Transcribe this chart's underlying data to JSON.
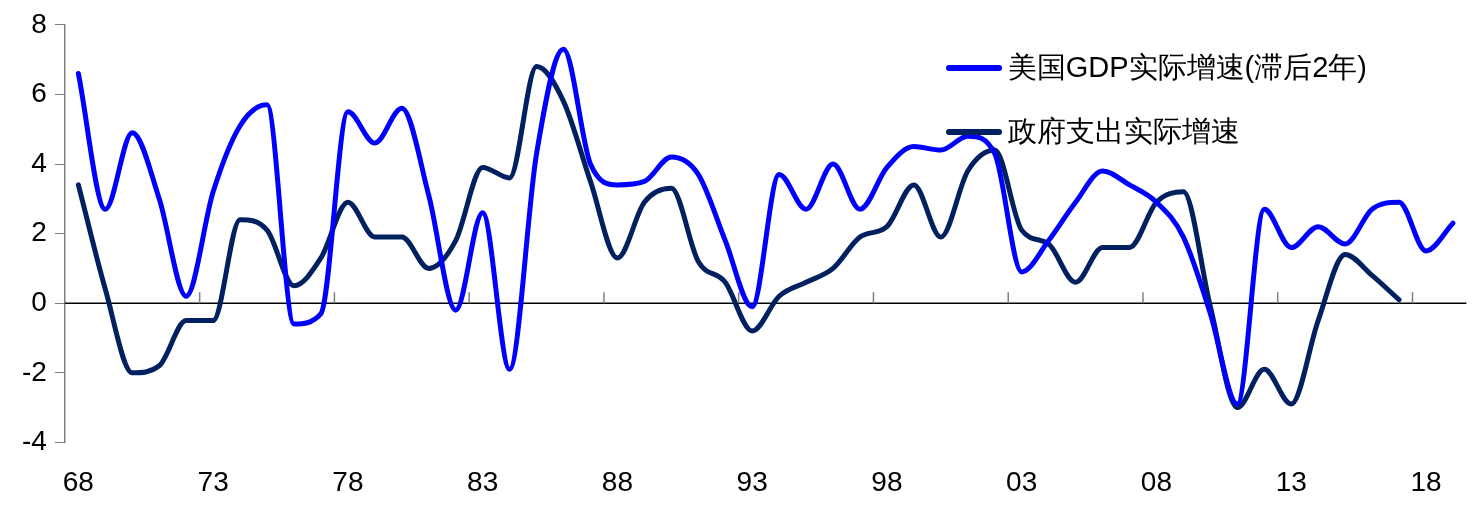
{
  "chart_data": {
    "type": "line",
    "categories": [
      "68",
      null,
      null,
      null,
      null,
      "73",
      null,
      null,
      null,
      null,
      "78",
      null,
      null,
      null,
      null,
      "83",
      null,
      null,
      null,
      null,
      "88",
      null,
      null,
      null,
      null,
      "93",
      null,
      null,
      null,
      null,
      "98",
      null,
      null,
      null,
      null,
      "03",
      null,
      null,
      null,
      null,
      "08",
      null,
      null,
      null,
      null,
      "13",
      null,
      null,
      null,
      null,
      "18",
      null
    ],
    "series": [
      {
        "name": "美国GDP实际增速(滞后2年)",
        "color": "#0000ff",
        "values": [
          6.6,
          2.7,
          4.9,
          3.0,
          0.2,
          3.2,
          5.1,
          5.7,
          -0.6,
          -0.3,
          5.5,
          4.6,
          5.6,
          3.1,
          -0.2,
          2.6,
          -1.9,
          4.3,
          7.3,
          4.0,
          3.4,
          3.5,
          4.2,
          3.7,
          1.8,
          -0.1,
          3.7,
          2.7,
          4.0,
          2.7,
          3.9,
          4.5,
          4.4,
          4.8,
          4.3,
          0.9,
          1.8,
          2.9,
          3.8,
          3.4,
          2.9,
          1.9,
          -0.3,
          -2.9,
          2.7,
          1.6,
          2.2,
          1.7,
          2.7,
          2.9,
          1.5,
          2.3
        ]
      },
      {
        "name": "政府支出实际增速",
        "color": "#002060",
        "values": [
          3.4,
          0.4,
          -2.0,
          -1.8,
          -0.5,
          -0.5,
          2.4,
          2.1,
          0.5,
          1.3,
          2.9,
          1.9,
          1.9,
          1.0,
          1.8,
          3.9,
          3.6,
          6.8,
          5.8,
          3.5,
          1.3,
          2.9,
          3.3,
          1.2,
          0.6,
          -0.8,
          0.2,
          0.6,
          1.0,
          1.9,
          2.2,
          3.4,
          1.9,
          3.8,
          4.4,
          2.1,
          1.7,
          0.6,
          1.6,
          1.6,
          2.9,
          3.2,
          -0.1,
          -3.0,
          -1.9,
          -2.9,
          -0.5,
          1.4,
          0.8,
          0.1,
          null,
          null
        ]
      }
    ],
    "ylim": [
      -4,
      8
    ],
    "yticks": [
      -4,
      -2,
      0,
      2,
      4,
      6,
      8
    ],
    "ref_lines": [
      {
        "axis": "y",
        "value": 0,
        "color": "#000000"
      }
    ],
    "grid": false,
    "legend": "top right",
    "marker": "none",
    "line_style": "solid"
  }
}
